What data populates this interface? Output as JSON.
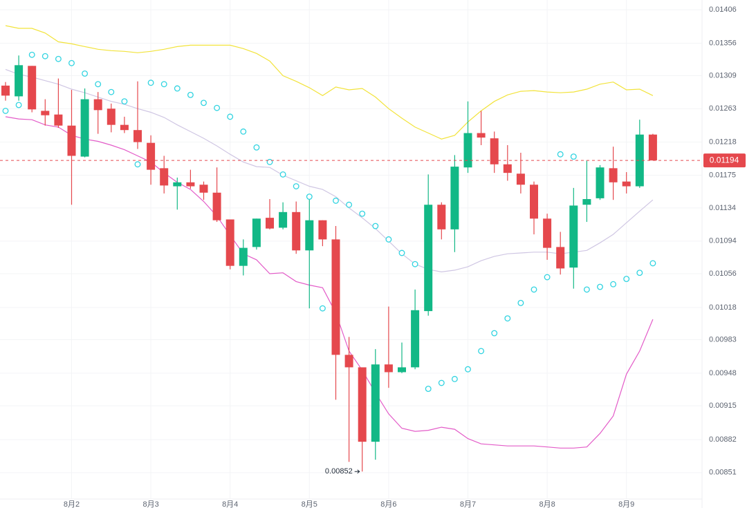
{
  "chart_data": {
    "type": "candlestick",
    "categories": [
      null,
      null,
      null,
      null,
      null,
      "8月2",
      null,
      null,
      null,
      null,
      null,
      "8月3",
      null,
      null,
      null,
      null,
      null,
      "8月4",
      null,
      null,
      null,
      null,
      null,
      "8月5",
      null,
      null,
      null,
      null,
      null,
      "8月6",
      null,
      null,
      null,
      null,
      null,
      "8月7",
      null,
      null,
      null,
      null,
      null,
      "8月8",
      null,
      null,
      null,
      null,
      null,
      "8月9",
      null,
      null
    ],
    "open": [
      0.01295,
      0.0128,
      0.01323,
      0.0126,
      0.01255,
      0.0124,
      0.01199,
      0.01276,
      0.01263,
      0.01241,
      0.01234,
      0.01217,
      0.01184,
      0.01161,
      0.01166,
      0.01163,
      0.01153,
      0.0112,
      0.01065,
      0.01087,
      0.01122,
      0.0111,
      0.01129,
      0.01083,
      0.01119,
      0.01096,
      0.00967,
      0.00954,
      0.0088,
      0.00957,
      0.00949,
      0.00954,
      0.01014,
      0.01138,
      0.01108,
      0.01185,
      0.0123,
      0.01223,
      0.01189,
      0.01177,
      0.01163,
      0.01121,
      0.01087,
      0.01063,
      0.01138,
      0.01146,
      0.01184,
      0.01167,
      0.01161,
      0.01228
    ],
    "high": [
      0.013,
      0.01338,
      0.01323,
      0.01276,
      0.01305,
      0.01289,
      0.01291,
      0.01286,
      0.0127,
      0.01252,
      0.01301,
      0.01227,
      0.012,
      0.01172,
      0.01182,
      0.01167,
      0.01185,
      0.0112,
      0.01096,
      0.01121,
      0.01145,
      0.01141,
      0.01142,
      0.0115,
      0.01119,
      0.01112,
      0.00986,
      0.00954,
      0.00973,
      0.01019,
      0.0098,
      0.01038,
      0.01176,
      0.01141,
      0.01201,
      0.01273,
      0.0126,
      0.01232,
      0.01214,
      0.01204,
      0.01167,
      0.01127,
      0.01105,
      0.01159,
      0.01194,
      0.01188,
      0.01212,
      0.01179,
      0.01248,
      0.01229
    ],
    "low": [
      0.01274,
      0.01274,
      0.01258,
      0.0124,
      0.01237,
      0.01138,
      0.01198,
      0.01229,
      0.01231,
      0.0123,
      0.01209,
      0.01163,
      0.01152,
      0.01132,
      0.01158,
      0.01144,
      0.01117,
      0.01061,
      0.01054,
      0.01084,
      0.01108,
      0.01108,
      0.01079,
      0.01017,
      0.01088,
      0.00921,
      0.00861,
      0.00852,
      0.00863,
      0.00933,
      0.00948,
      0.00952,
      0.01009,
      0.01096,
      0.01081,
      0.01178,
      0.01214,
      0.01178,
      0.01168,
      0.01152,
      0.01102,
      0.01072,
      0.01055,
      0.01039,
      0.01117,
      0.01144,
      0.01144,
      0.01152,
      0.01159,
      0.01194
    ],
    "close": [
      0.01281,
      0.01324,
      0.01262,
      0.01254,
      0.0124,
      0.012,
      0.01276,
      0.01261,
      0.01241,
      0.01234,
      0.01218,
      0.01182,
      0.01162,
      0.01166,
      0.01161,
      0.01153,
      0.01119,
      0.01065,
      0.01086,
      0.01121,
      0.01109,
      0.01129,
      0.01083,
      0.01119,
      0.01096,
      0.00967,
      0.00954,
      0.0088,
      0.00957,
      0.00949,
      0.00954,
      0.01015,
      0.01138,
      0.01108,
      0.01186,
      0.0123,
      0.01224,
      0.01189,
      0.01178,
      0.01163,
      0.01121,
      0.01086,
      0.01062,
      0.01137,
      0.01145,
      0.01185,
      0.01166,
      0.01161,
      0.01228,
      0.01194
    ],
    "up_color": "#12b886",
    "down_color": "#e5484d",
    "ylim": [
      0.00827,
      0.01421
    ],
    "log_scale": true,
    "yticks": [
      0.01406,
      0.01356,
      0.01309,
      0.01263,
      0.01218,
      0.01175,
      0.01134,
      0.01094,
      0.01056,
      0.01018,
      0.00983,
      0.00948,
      0.00915,
      0.00882,
      0.00851
    ],
    "grid": true,
    "price_line": true,
    "lines": [
      {
        "color": "#f2e33a",
        "values": [
          0.01382,
          0.01378,
          0.01378,
          0.01371,
          0.01358,
          0.01355,
          0.01351,
          0.01347,
          0.01345,
          0.01344,
          0.01342,
          0.01344,
          0.01347,
          0.01351,
          0.01353,
          0.01353,
          0.01353,
          0.01353,
          0.01348,
          0.01341,
          0.0133,
          0.01309,
          0.01301,
          0.01292,
          0.01281,
          0.01293,
          0.01289,
          0.01291,
          0.01279,
          0.01263,
          0.0125,
          0.01238,
          0.0123,
          0.01222,
          0.01227,
          0.01245,
          0.0126,
          0.01273,
          0.01282,
          0.01287,
          0.01288,
          0.01286,
          0.01285,
          0.01286,
          0.0129,
          0.01297,
          0.013,
          0.01289,
          0.0129,
          0.01281
        ]
      },
      {
        "color": "#cfc6e3",
        "values": [
          0.01318,
          0.01311,
          0.01307,
          0.01302,
          0.01297,
          0.0129,
          0.01285,
          0.01279,
          0.01273,
          0.01269,
          0.01263,
          0.01258,
          0.01251,
          0.01241,
          0.01232,
          0.01223,
          0.01213,
          0.01202,
          0.01192,
          0.01186,
          0.01185,
          0.01175,
          0.01168,
          0.01161,
          0.01157,
          0.01148,
          0.01134,
          0.01122,
          0.01109,
          0.01094,
          0.01079,
          0.01067,
          0.01061,
          0.01058,
          0.0106,
          0.01064,
          0.01071,
          0.01076,
          0.01079,
          0.0108,
          0.01081,
          0.01081,
          0.01079,
          0.01081,
          0.01083,
          0.01092,
          0.01102,
          0.01116,
          0.0113,
          0.01144
        ]
      },
      {
        "color": "#e35bc8",
        "values": [
          0.01252,
          0.01249,
          0.01248,
          0.01241,
          0.01238,
          0.01227,
          0.01222,
          0.01219,
          0.01214,
          0.01208,
          0.012,
          0.01192,
          0.01178,
          0.01166,
          0.01157,
          0.01142,
          0.01124,
          0.01101,
          0.01079,
          0.01072,
          0.01056,
          0.01057,
          0.01047,
          0.01043,
          0.0104,
          0.01012,
          0.00971,
          0.00951,
          0.00928,
          0.00907,
          0.00893,
          0.0089,
          0.00891,
          0.00894,
          0.00892,
          0.00883,
          0.00878,
          0.00877,
          0.00876,
          0.00876,
          0.00876,
          0.00875,
          0.00874,
          0.00874,
          0.00875,
          0.00888,
          0.00905,
          0.00947,
          0.00971,
          0.01005
        ]
      }
    ],
    "sar": {
      "color": "#2fd3e0",
      "values": [
        0.0126,
        0.01268,
        0.01339,
        0.01337,
        0.01333,
        0.01327,
        0.01312,
        0.01297,
        0.01286,
        0.01273,
        0.01189,
        0.01299,
        0.01297,
        0.01291,
        0.01282,
        0.01271,
        0.01264,
        0.01252,
        0.01232,
        0.01211,
        0.01192,
        0.01176,
        0.01161,
        0.01148,
        0.01017,
        0.01143,
        0.01138,
        0.01127,
        0.01112,
        0.01096,
        0.0108,
        0.01067,
        0.00932,
        0.00938,
        0.00942,
        0.00952,
        0.00971,
        0.0099,
        0.01006,
        0.01023,
        0.01038,
        0.01052,
        0.01202,
        0.01199,
        0.01038,
        0.01041,
        0.01044,
        0.0105,
        0.01057,
        0.01068
      ]
    }
  }
}
